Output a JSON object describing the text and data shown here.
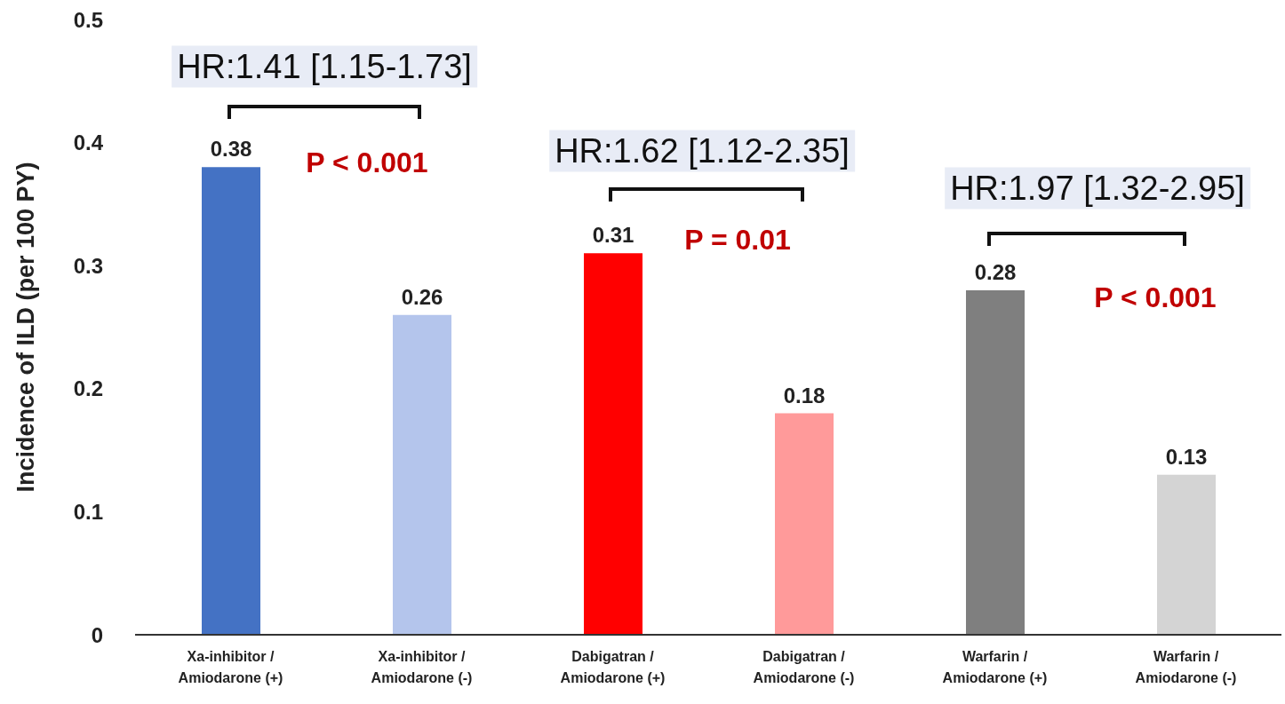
{
  "chart_data": {
    "type": "bar",
    "ylabel": "Incidence of ILD (per 100 PY)",
    "categories": [
      "Xa-inhibitor / Amiodarone (+)",
      "Xa-inhibitor / Amiodarone (-)",
      "Dabigatran / Amiodarone (+)",
      "Dabigatran / Amiodarone (-)",
      "Warfarin / Amiodarone (+)",
      "Warfarin / Amiodarone (-)"
    ],
    "values": [
      0.38,
      0.26,
      0.31,
      0.18,
      0.28,
      0.13
    ],
    "colors": [
      "#4472c4",
      "#b4c5ec",
      "#ff0000",
      "#ff9a9a",
      "#7f7f7f",
      "#d4d4d4"
    ],
    "ylim": [
      0,
      0.5
    ],
    "yticks": [
      0,
      0.1,
      0.2,
      0.3,
      0.4,
      0.5
    ],
    "data_labels": true,
    "annotations": [
      "HR:1.41 [1.15-1.73]",
      "P < 0.001",
      "HR:1.62 [1.12-2.35]",
      "P = 0.01",
      "HR:1.97 [1.32-2.95]",
      "P < 0.001"
    ]
  }
}
